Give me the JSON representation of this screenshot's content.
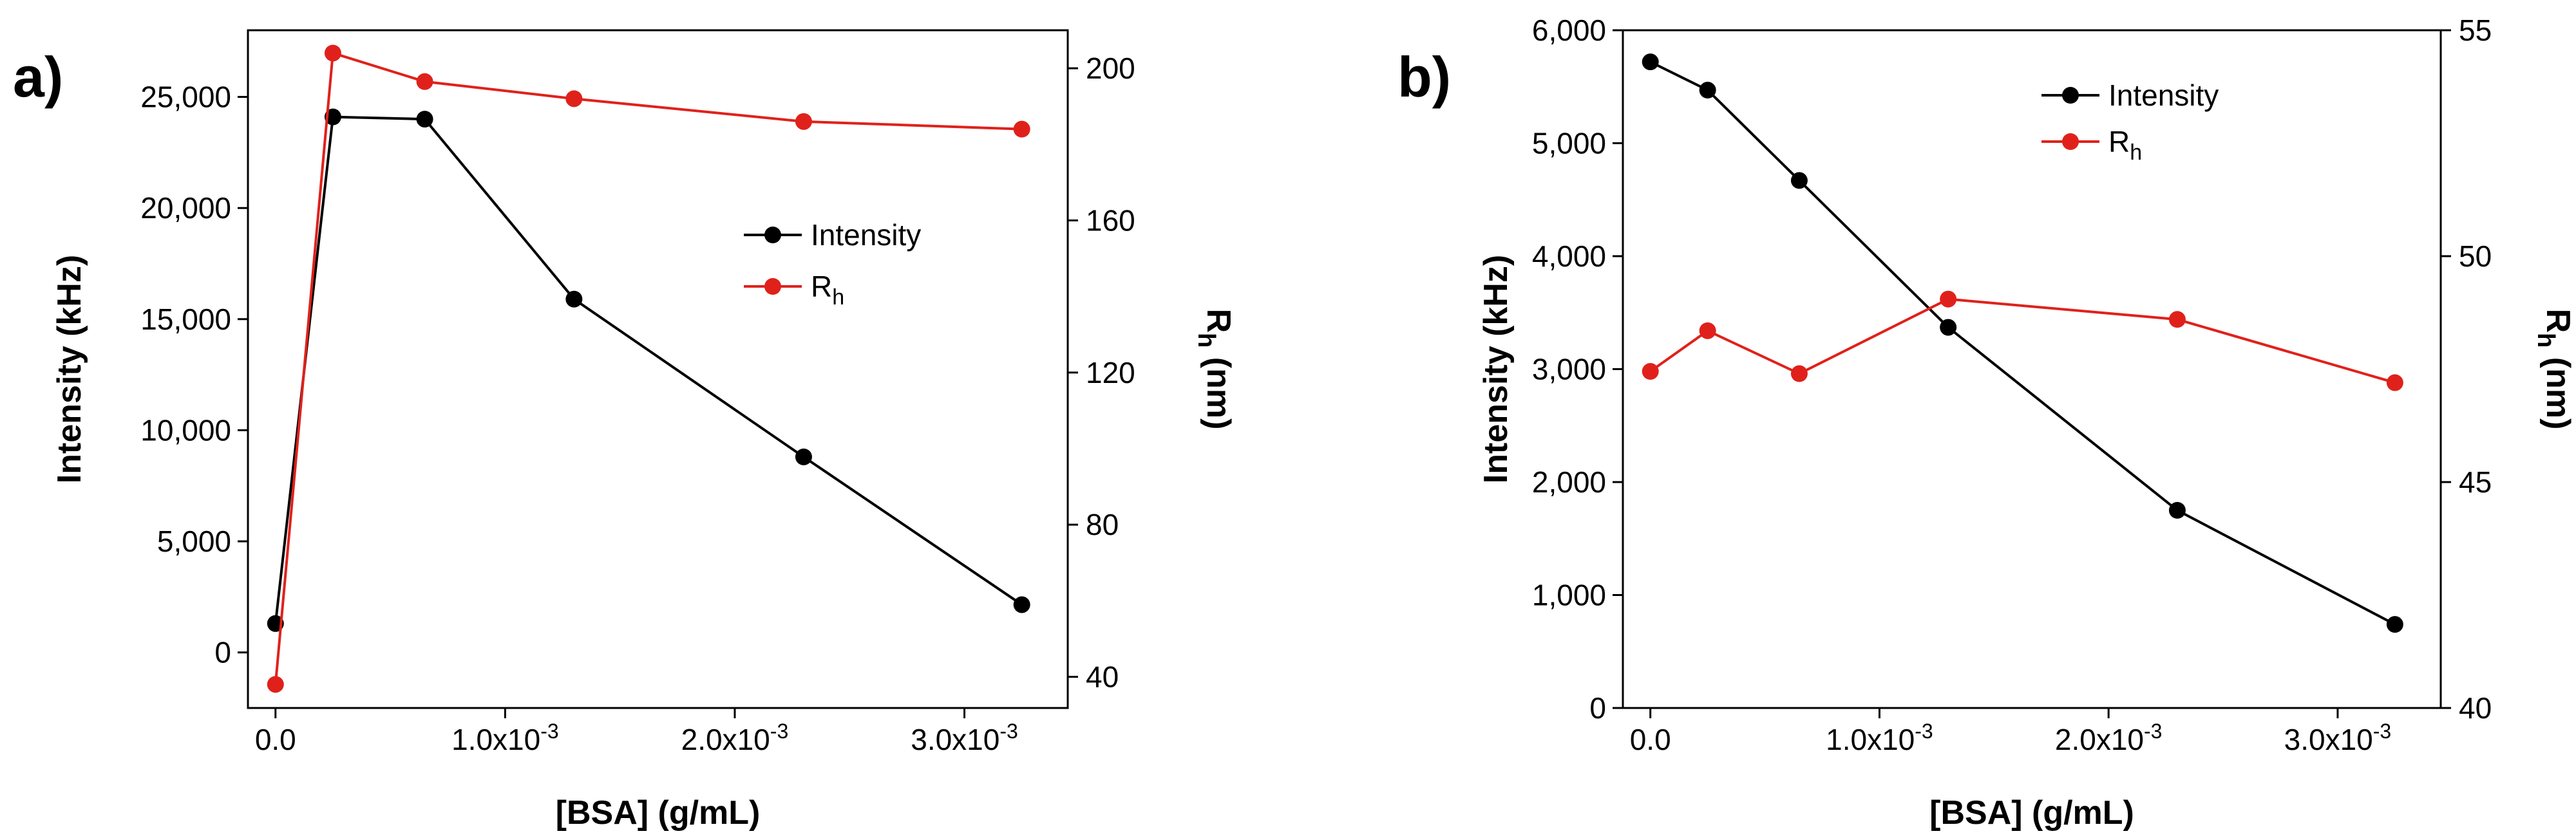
{
  "chart_data": [
    {
      "type": "line",
      "panel_label": "a)",
      "xlabel": "[BSA] (g/mL)",
      "ylabel": "Intensity (kHz)",
      "y2label_main": "R",
      "y2label_sub": "h",
      "y2label_unit": " (nm)",
      "xlim": [
        -0.00012,
        0.00345
      ],
      "ylim": [
        -2500,
        28000
      ],
      "y2lim": [
        31.8,
        210
      ],
      "xticks": [
        0,
        0.001,
        0.002,
        0.003
      ],
      "xtick_labels": [
        "0.0",
        "1.0x10",
        "2.0x10",
        "3.0x10"
      ],
      "xtick_exps": [
        "",
        "-3",
        "-3",
        "-3"
      ],
      "yticks": [
        0,
        5000,
        10000,
        15000,
        20000,
        25000
      ],
      "ytick_labels": [
        "0",
        "5,000",
        "10,000",
        "15,000",
        "20,000",
        "25,000"
      ],
      "y2ticks": [
        40,
        80,
        120,
        160,
        200
      ],
      "y2tick_labels": [
        "40",
        "80",
        "120",
        "160",
        "200"
      ],
      "legend_position": "right-middle",
      "series": [
        {
          "name": "Intensity",
          "sub": "",
          "axis": "left",
          "color": "#000000",
          "x": [
            0,
            0.00025,
            0.00065,
            0.0013,
            0.0023,
            0.00325
          ],
          "values": [
            1300,
            24100,
            24000,
            15900,
            8800,
            2150
          ]
        },
        {
          "name": "R",
          "sub": "h",
          "axis": "right",
          "color": "#e0211b",
          "x": [
            0,
            0.00025,
            0.00065,
            0.0013,
            0.0023,
            0.00325
          ],
          "values": [
            38,
            204,
            196.5,
            192,
            186,
            184
          ]
        }
      ]
    },
    {
      "type": "line",
      "panel_label": "b)",
      "xlabel": "[BSA] (g/mL)",
      "ylabel": "Intensity (kHz)",
      "y2label_main": "R",
      "y2label_sub": "h",
      "y2label_unit": " (nm)",
      "xlim": [
        -0.00012,
        0.00345
      ],
      "ylim": [
        0,
        6000
      ],
      "y2lim": [
        40,
        55
      ],
      "xticks": [
        0,
        0.001,
        0.002,
        0.003
      ],
      "xtick_labels": [
        "0.0",
        "1.0x10",
        "2.0x10",
        "3.0x10"
      ],
      "xtick_exps": [
        "",
        "-3",
        "-3",
        "-3"
      ],
      "yticks": [
        0,
        1000,
        2000,
        3000,
        4000,
        5000,
        6000
      ],
      "ytick_labels": [
        "0",
        "1,000",
        "2,000",
        "3,000",
        "4,000",
        "5,000",
        "6,000"
      ],
      "y2ticks": [
        40,
        45,
        50,
        55
      ],
      "y2tick_labels": [
        "40",
        "45",
        "50",
        "55"
      ],
      "legend_position": "top-right",
      "series": [
        {
          "name": "Intensity",
          "sub": "",
          "axis": "left",
          "color": "#000000",
          "x": [
            0,
            0.00025,
            0.00065,
            0.0013,
            0.0023,
            0.00325
          ],
          "values": [
            5720,
            5470,
            4670,
            3370,
            1750,
            740
          ]
        },
        {
          "name": "R",
          "sub": "h",
          "axis": "right",
          "color": "#e0211b",
          "x": [
            0,
            0.00025,
            0.00065,
            0.0013,
            0.0023,
            0.00325
          ],
          "values": [
            47.45,
            48.35,
            47.4,
            49.05,
            48.6,
            47.2
          ]
        }
      ]
    }
  ]
}
